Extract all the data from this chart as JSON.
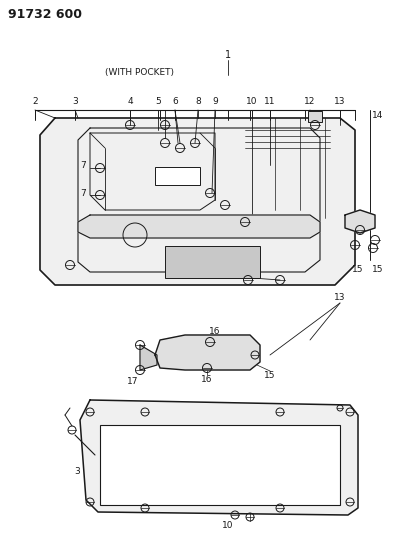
{
  "title": "91732 600",
  "subtitle": "(WITH POCKET)",
  "bg": "#ffffff",
  "lc": "#1a1a1a",
  "tc": "#1a1a1a",
  "fig_w": 3.93,
  "fig_h": 5.33,
  "dpi": 100
}
